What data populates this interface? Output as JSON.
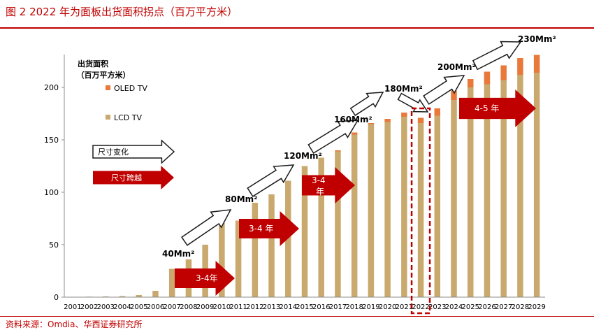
{
  "figure": {
    "title": "图 2   2022 年为面板出货面积拐点（百万平方米）",
    "source": "资料来源：Omdia、华西证券研究所"
  },
  "chart_data": {
    "type": "bar",
    "stacked": true,
    "ylabel_line1": "出货面积",
    "ylabel_line2": "（百万平方米）",
    "ylim": [
      0,
      230
    ],
    "yticks": [
      0,
      50,
      100,
      150,
      200
    ],
    "categories": [
      "2001",
      "2002",
      "2003",
      "2004",
      "2005",
      "2006",
      "2007",
      "2008",
      "2009",
      "2010",
      "2011",
      "2012",
      "2013",
      "2014",
      "2015",
      "2016",
      "2017",
      "2018",
      "2019",
      "2020",
      "2021",
      "2022",
      "2023",
      "2024",
      "2025",
      "2026",
      "2027",
      "2028",
      "2029"
    ],
    "series": [
      {
        "name": "LCD TV",
        "color": "#c9a96e",
        "values": [
          0.3,
          0.5,
          0.7,
          1,
          2,
          6,
          27,
          36,
          50,
          71,
          73,
          90,
          98,
          111,
          125,
          133,
          139,
          155,
          165,
          167,
          172,
          166,
          173,
          188,
          200,
          203,
          207,
          212,
          214
        ]
      },
      {
        "name": "OLED TV",
        "color": "#e8793a",
        "values": [
          0,
          0,
          0,
          0,
          0,
          0,
          0,
          0,
          0,
          0,
          0,
          0,
          0,
          0,
          0,
          0,
          1,
          2,
          1,
          3,
          4,
          5,
          7,
          9,
          8,
          12,
          14,
          16,
          17
        ]
      }
    ],
    "legend_labels": [
      "OLED TV",
      "LCD TV"
    ],
    "size_labels": [
      "40Mm²",
      "80Mm²",
      "120Mm²",
      "160Mm²",
      "180Mm²",
      "200Mm²",
      "230Mm²"
    ],
    "jump_labels": [
      "3-4年",
      "3-4 年",
      "3-4",
      "年",
      "4-5 年"
    ],
    "arrow_legend": [
      "尺寸变化",
      "尺寸跨越"
    ],
    "highlight_year": "2022"
  },
  "colors": {
    "lcd": "#c9a96e",
    "oled": "#e8793a",
    "accent_red": "#c00000",
    "axis": "#8c8c8c"
  }
}
